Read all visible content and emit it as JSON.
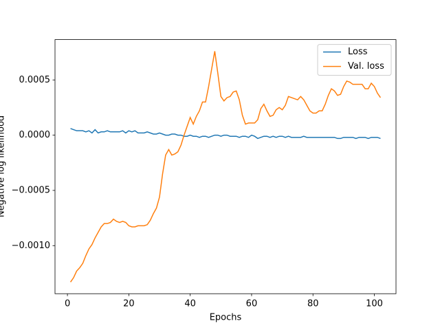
{
  "chart_data": {
    "type": "line",
    "xlabel": "Epochs",
    "ylabel": "Negative log likelihood",
    "x": [
      1,
      2,
      3,
      4,
      5,
      6,
      7,
      8,
      9,
      10,
      11,
      12,
      13,
      14,
      15,
      16,
      17,
      18,
      19,
      20,
      21,
      22,
      23,
      24,
      25,
      26,
      27,
      28,
      29,
      30,
      31,
      32,
      33,
      34,
      35,
      36,
      37,
      38,
      39,
      40,
      41,
      42,
      43,
      44,
      45,
      46,
      47,
      48,
      49,
      50,
      51,
      52,
      53,
      54,
      55,
      56,
      57,
      58,
      59,
      60,
      61,
      62,
      63,
      64,
      65,
      66,
      67,
      68,
      69,
      70,
      71,
      72,
      73,
      74,
      75,
      76,
      77,
      78,
      79,
      80,
      81,
      82,
      83,
      84,
      85,
      86,
      87,
      88,
      89,
      90,
      91,
      92,
      93,
      94,
      95,
      96,
      97,
      98,
      99,
      100,
      101,
      102
    ],
    "series": [
      {
        "name": "Loss",
        "color": "#1f77b4",
        "values": [
          6e-05,
          5e-05,
          4e-05,
          4e-05,
          4e-05,
          3e-05,
          4e-05,
          2e-05,
          5e-05,
          2e-05,
          3e-05,
          3e-05,
          4e-05,
          3e-05,
          3e-05,
          3e-05,
          3e-05,
          4e-05,
          2e-05,
          4e-05,
          3e-05,
          4e-05,
          2e-05,
          2e-05,
          2e-05,
          3e-05,
          2e-05,
          1e-05,
          1e-05,
          2e-05,
          1e-05,
          0.0,
          0.0,
          1e-05,
          1e-05,
          0.0,
          0.0,
          -1e-05,
          -1e-05,
          0.0,
          -1e-05,
          -1e-05,
          -2e-05,
          -1e-05,
          -1e-05,
          -2e-05,
          -1e-05,
          0.0,
          0.0,
          -1e-05,
          0.0,
          0.0,
          -1e-05,
          -1e-05,
          -1e-05,
          -2e-05,
          -1e-05,
          -1e-05,
          -2e-05,
          0.0,
          -1e-05,
          -3e-05,
          -2e-05,
          -1e-05,
          -1e-05,
          -2e-05,
          -1e-05,
          -2e-05,
          -1e-05,
          -1e-05,
          -2e-05,
          -1e-05,
          -2e-05,
          -2e-05,
          -2e-05,
          -2e-05,
          -1e-05,
          -2e-05,
          -2e-05,
          -2e-05,
          -2e-05,
          -2e-05,
          -2e-05,
          -2e-05,
          -2e-05,
          -2e-05,
          -2e-05,
          -3e-05,
          -3e-05,
          -2e-05,
          -2e-05,
          -2e-05,
          -2e-05,
          -3e-05,
          -2e-05,
          -2e-05,
          -2e-05,
          -3e-05,
          -2e-05,
          -2e-05,
          -2e-05,
          -3e-05
        ]
      },
      {
        "name": "Val. loss",
        "color": "#ff7f0e",
        "values": [
          -0.00133,
          -0.00129,
          -0.00123,
          -0.0012,
          -0.00116,
          -0.00109,
          -0.00103,
          -0.00099,
          -0.00093,
          -0.00088,
          -0.00083,
          -0.0008,
          -0.0008,
          -0.00079,
          -0.00076,
          -0.00078,
          -0.00079,
          -0.00078,
          -0.00079,
          -0.00082,
          -0.00083,
          -0.00083,
          -0.00082,
          -0.00082,
          -0.00082,
          -0.00081,
          -0.00077,
          -0.00071,
          -0.00066,
          -0.00056,
          -0.00035,
          -0.00018,
          -0.00013,
          -0.00018,
          -0.00017,
          -0.00015,
          -9e-05,
          0.0,
          8e-05,
          0.00016,
          0.0001,
          0.00017,
          0.00022,
          0.0003,
          0.0003,
          0.00044,
          0.0006,
          0.00076,
          0.00056,
          0.00035,
          0.00031,
          0.00034,
          0.00035,
          0.00039,
          0.0004,
          0.00032,
          0.00018,
          0.0001,
          0.00011,
          0.00011,
          0.00011,
          0.00014,
          0.00024,
          0.00028,
          0.00022,
          0.00017,
          0.00018,
          0.00023,
          0.00025,
          0.00023,
          0.00027,
          0.00035,
          0.00034,
          0.00033,
          0.00032,
          0.00035,
          0.00032,
          0.00027,
          0.00022,
          0.0002,
          0.0002,
          0.00022,
          0.00022,
          0.00028,
          0.00036,
          0.00042,
          0.0004,
          0.00036,
          0.00037,
          0.00044,
          0.00049,
          0.00048,
          0.00046,
          0.00046,
          0.00046,
          0.00046,
          0.00042,
          0.00042,
          0.00047,
          0.00044,
          0.00038,
          0.00034
        ]
      }
    ],
    "xlim": [
      -4.05,
      107.05
    ],
    "ylim": [
      -0.001435,
      0.000865
    ],
    "xticks": [
      0,
      20,
      40,
      60,
      80,
      100
    ],
    "yticks": [
      {
        "value": -0.001,
        "label": "−0.0010"
      },
      {
        "value": -0.0005,
        "label": "−0.0005"
      },
      {
        "value": 0,
        "label": "0.0000"
      },
      {
        "value": 0.0005,
        "label": "0.0005"
      }
    ],
    "legend": "upper right",
    "grid": false
  }
}
